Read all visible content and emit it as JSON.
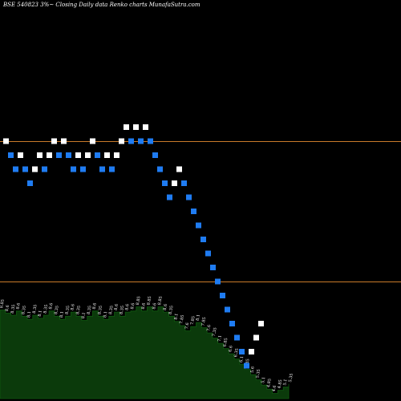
{
  "header": {
    "title": "BSE 540823 3%~ Closing Daily data Renko charts MunafaSutra.com"
  },
  "colors": {
    "background": "#000000",
    "up_brick": "#ffffff",
    "down_brick": "#1f7cf2",
    "level_line": "#c87a2a",
    "volume_fill": "#0b3a0b",
    "volume_edge": "#0f5a10"
  },
  "chart_data": [
    {
      "type": "renko",
      "bricks": [
        {
          "dir": "up",
          "value": 8.6
        },
        {
          "dir": "down",
          "value": 8.35
        },
        {
          "dir": "down",
          "value": 8.1
        },
        {
          "dir": "up",
          "value": 8.35
        },
        {
          "dir": "down",
          "value": 8.1
        },
        {
          "dir": "down",
          "value": 7.85
        },
        {
          "dir": "up",
          "value": 8.1
        },
        {
          "dir": "up",
          "value": 8.35
        },
        {
          "dir": "down",
          "value": 8.1
        },
        {
          "dir": "up",
          "value": 8.35
        },
        {
          "dir": "up",
          "value": 8.6
        },
        {
          "dir": "down",
          "value": 8.35
        },
        {
          "dir": "up",
          "value": 8.6
        },
        {
          "dir": "down",
          "value": 8.35
        },
        {
          "dir": "down",
          "value": 8.1
        },
        {
          "dir": "up",
          "value": 8.35
        },
        {
          "dir": "down",
          "value": 8.1
        },
        {
          "dir": "up",
          "value": 8.35
        },
        {
          "dir": "up",
          "value": 8.6
        },
        {
          "dir": "down",
          "value": 8.35
        },
        {
          "dir": "down",
          "value": 8.1
        },
        {
          "dir": "up",
          "value": 8.35
        },
        {
          "dir": "down",
          "value": 8.1
        },
        {
          "dir": "up",
          "value": 8.35
        },
        {
          "dir": "up",
          "value": 8.6
        },
        {
          "dir": "up",
          "value": 8.85
        },
        {
          "dir": "down",
          "value": 8.6
        },
        {
          "dir": "up",
          "value": 8.85
        },
        {
          "dir": "down",
          "value": 8.6
        },
        {
          "dir": "up",
          "value": 8.85
        },
        {
          "dir": "down",
          "value": 8.6
        },
        {
          "dir": "down",
          "value": 8.35
        },
        {
          "dir": "down",
          "value": 8.1
        },
        {
          "dir": "down",
          "value": 7.85
        },
        {
          "dir": "down",
          "value": 7.6
        },
        {
          "dir": "up",
          "value": 7.85
        },
        {
          "dir": "up",
          "value": 8.1
        },
        {
          "dir": "down",
          "value": 7.85
        },
        {
          "dir": "down",
          "value": 7.6
        },
        {
          "dir": "down",
          "value": 7.35
        },
        {
          "dir": "down",
          "value": 7.1
        },
        {
          "dir": "down",
          "value": 6.85
        },
        {
          "dir": "down",
          "value": 6.6
        },
        {
          "dir": "down",
          "value": 6.35
        },
        {
          "dir": "down",
          "value": 6.1
        },
        {
          "dir": "down",
          "value": 5.85
        },
        {
          "dir": "down",
          "value": 5.6
        },
        {
          "dir": "down",
          "value": 5.35
        },
        {
          "dir": "down",
          "value": 5.1
        },
        {
          "dir": "down",
          "value": 4.85
        },
        {
          "dir": "down",
          "value": 4.6
        },
        {
          "dir": "up",
          "value": 4.85
        },
        {
          "dir": "up",
          "value": 5.1
        },
        {
          "dir": "up",
          "value": 5.35
        }
      ],
      "levels": [
        8.6,
        6.1
      ],
      "ylim": [
        4.0,
        11.0
      ],
      "grid": false
    },
    {
      "type": "area",
      "labels": [
        "8.85",
        "8.6",
        "8.35",
        "8.6",
        "8.35",
        "8.1",
        "8.35",
        "8.1",
        "8.35",
        "8.6",
        "8.35",
        "8.1",
        "8.35",
        "8.6",
        "8.35",
        "8.1",
        "8.35",
        "8.6",
        "8.35",
        "8.1",
        "8.35",
        "8.6",
        "8.35",
        "8.6",
        "8.6",
        "8.85",
        "8.6",
        "8.85",
        "8.6",
        "8.85",
        "8.6",
        "8.35",
        "8.1",
        "7.85",
        "7.6",
        "7.85",
        "8.1",
        "7.85",
        "7.6",
        "7.35",
        "7.1",
        "6.85",
        "6.6",
        "6.35",
        "6.1",
        "5.85",
        "5.6",
        "5.35",
        "5.1",
        "4.85",
        "4.6",
        "4.85",
        "5.1",
        "5.35"
      ],
      "values": [
        85,
        82,
        80,
        84,
        79,
        76,
        80,
        77,
        80,
        84,
        79,
        76,
        79,
        83,
        79,
        75,
        79,
        84,
        79,
        76,
        79,
        83,
        79,
        83,
        84,
        88,
        84,
        88,
        84,
        88,
        83,
        79,
        74,
        70,
        65,
        69,
        73,
        68,
        63,
        58,
        53,
        48,
        43,
        38,
        33,
        28,
        23,
        18,
        13,
        9,
        5,
        8,
        11,
        14
      ],
      "ylim": [
        0,
        100
      ]
    }
  ]
}
